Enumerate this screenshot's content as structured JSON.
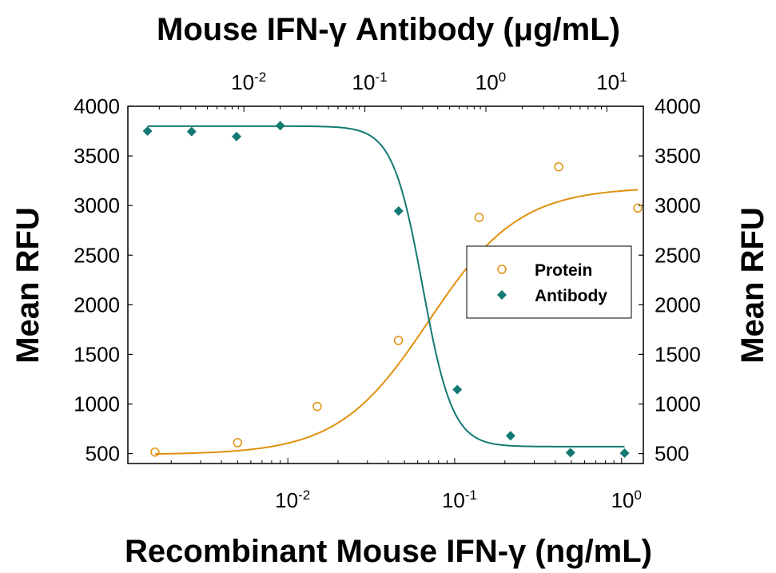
{
  "chart_data": {
    "type": "scatter",
    "title_top": "Mouse IFN-γ Antibody (μg/mL)",
    "xlabel_bottom": "Recombinant Mouse IFN-γ (ng/mL)",
    "ylabel_left": "Mean RFU",
    "ylabel_right": "Mean RFU",
    "x_bottom_scale": "log",
    "x_bottom_range": [
      0.0011,
      1.35
    ],
    "x_bottom_ticks": [
      {
        "base": "10",
        "exp": "-2",
        "value": 0.01
      },
      {
        "base": "10",
        "exp": "-1",
        "value": 0.1
      },
      {
        "base": "10",
        "exp": "0",
        "value": 1
      }
    ],
    "x_top_scale": "log",
    "x_top_range": [
      0.0011,
      20
    ],
    "x_top_ticks": [
      {
        "base": "10",
        "exp": "-2",
        "value": 0.01
      },
      {
        "base": "10",
        "exp": "-1",
        "value": 0.1
      },
      {
        "base": "10",
        "exp": "0",
        "value": 1
      },
      {
        "base": "10",
        "exp": "1",
        "value": 10
      }
    ],
    "ylim": [
      400,
      4000
    ],
    "y_ticks": [
      "500",
      "1000",
      "1500",
      "2000",
      "2500",
      "3000",
      "3500",
      "4000"
    ],
    "grid": false,
    "legend_position": "center-right",
    "series": [
      {
        "name": "Protein",
        "axis": "bottom",
        "marker": "open-circle",
        "color": "#e0900e",
        "points": [
          {
            "x": 0.0016,
            "y": 515
          },
          {
            "x": 0.005,
            "y": 610
          },
          {
            "x": 0.015,
            "y": 975
          },
          {
            "x": 0.046,
            "y": 1640
          },
          {
            "x": 0.14,
            "y": 2880
          },
          {
            "x": 0.42,
            "y": 3390
          },
          {
            "x": 1.25,
            "y": 2975
          }
        ],
        "fit": {
          "bottom": 490,
          "top": 3185,
          "ec50": 0.07,
          "hill": 1.6
        }
      },
      {
        "name": "Antibody",
        "axis": "top",
        "marker": "filled-diamond",
        "color": "#137a73",
        "points": [
          {
            "x": 0.0016,
            "y": 3750
          },
          {
            "x": 0.0037,
            "y": 3745
          },
          {
            "x": 0.0087,
            "y": 3695
          },
          {
            "x": 0.02,
            "y": 3805
          },
          {
            "x": 0.19,
            "y": 2945
          },
          {
            "x": 0.58,
            "y": 1145
          },
          {
            "x": 1.6,
            "y": 680
          },
          {
            "x": 5.0,
            "y": 510
          },
          {
            "x": 14.0,
            "y": 505
          }
        ],
        "fit": {
          "bottom": 570,
          "top": 3800,
          "ec50": 0.3,
          "hill": 3.5
        }
      }
    ]
  }
}
